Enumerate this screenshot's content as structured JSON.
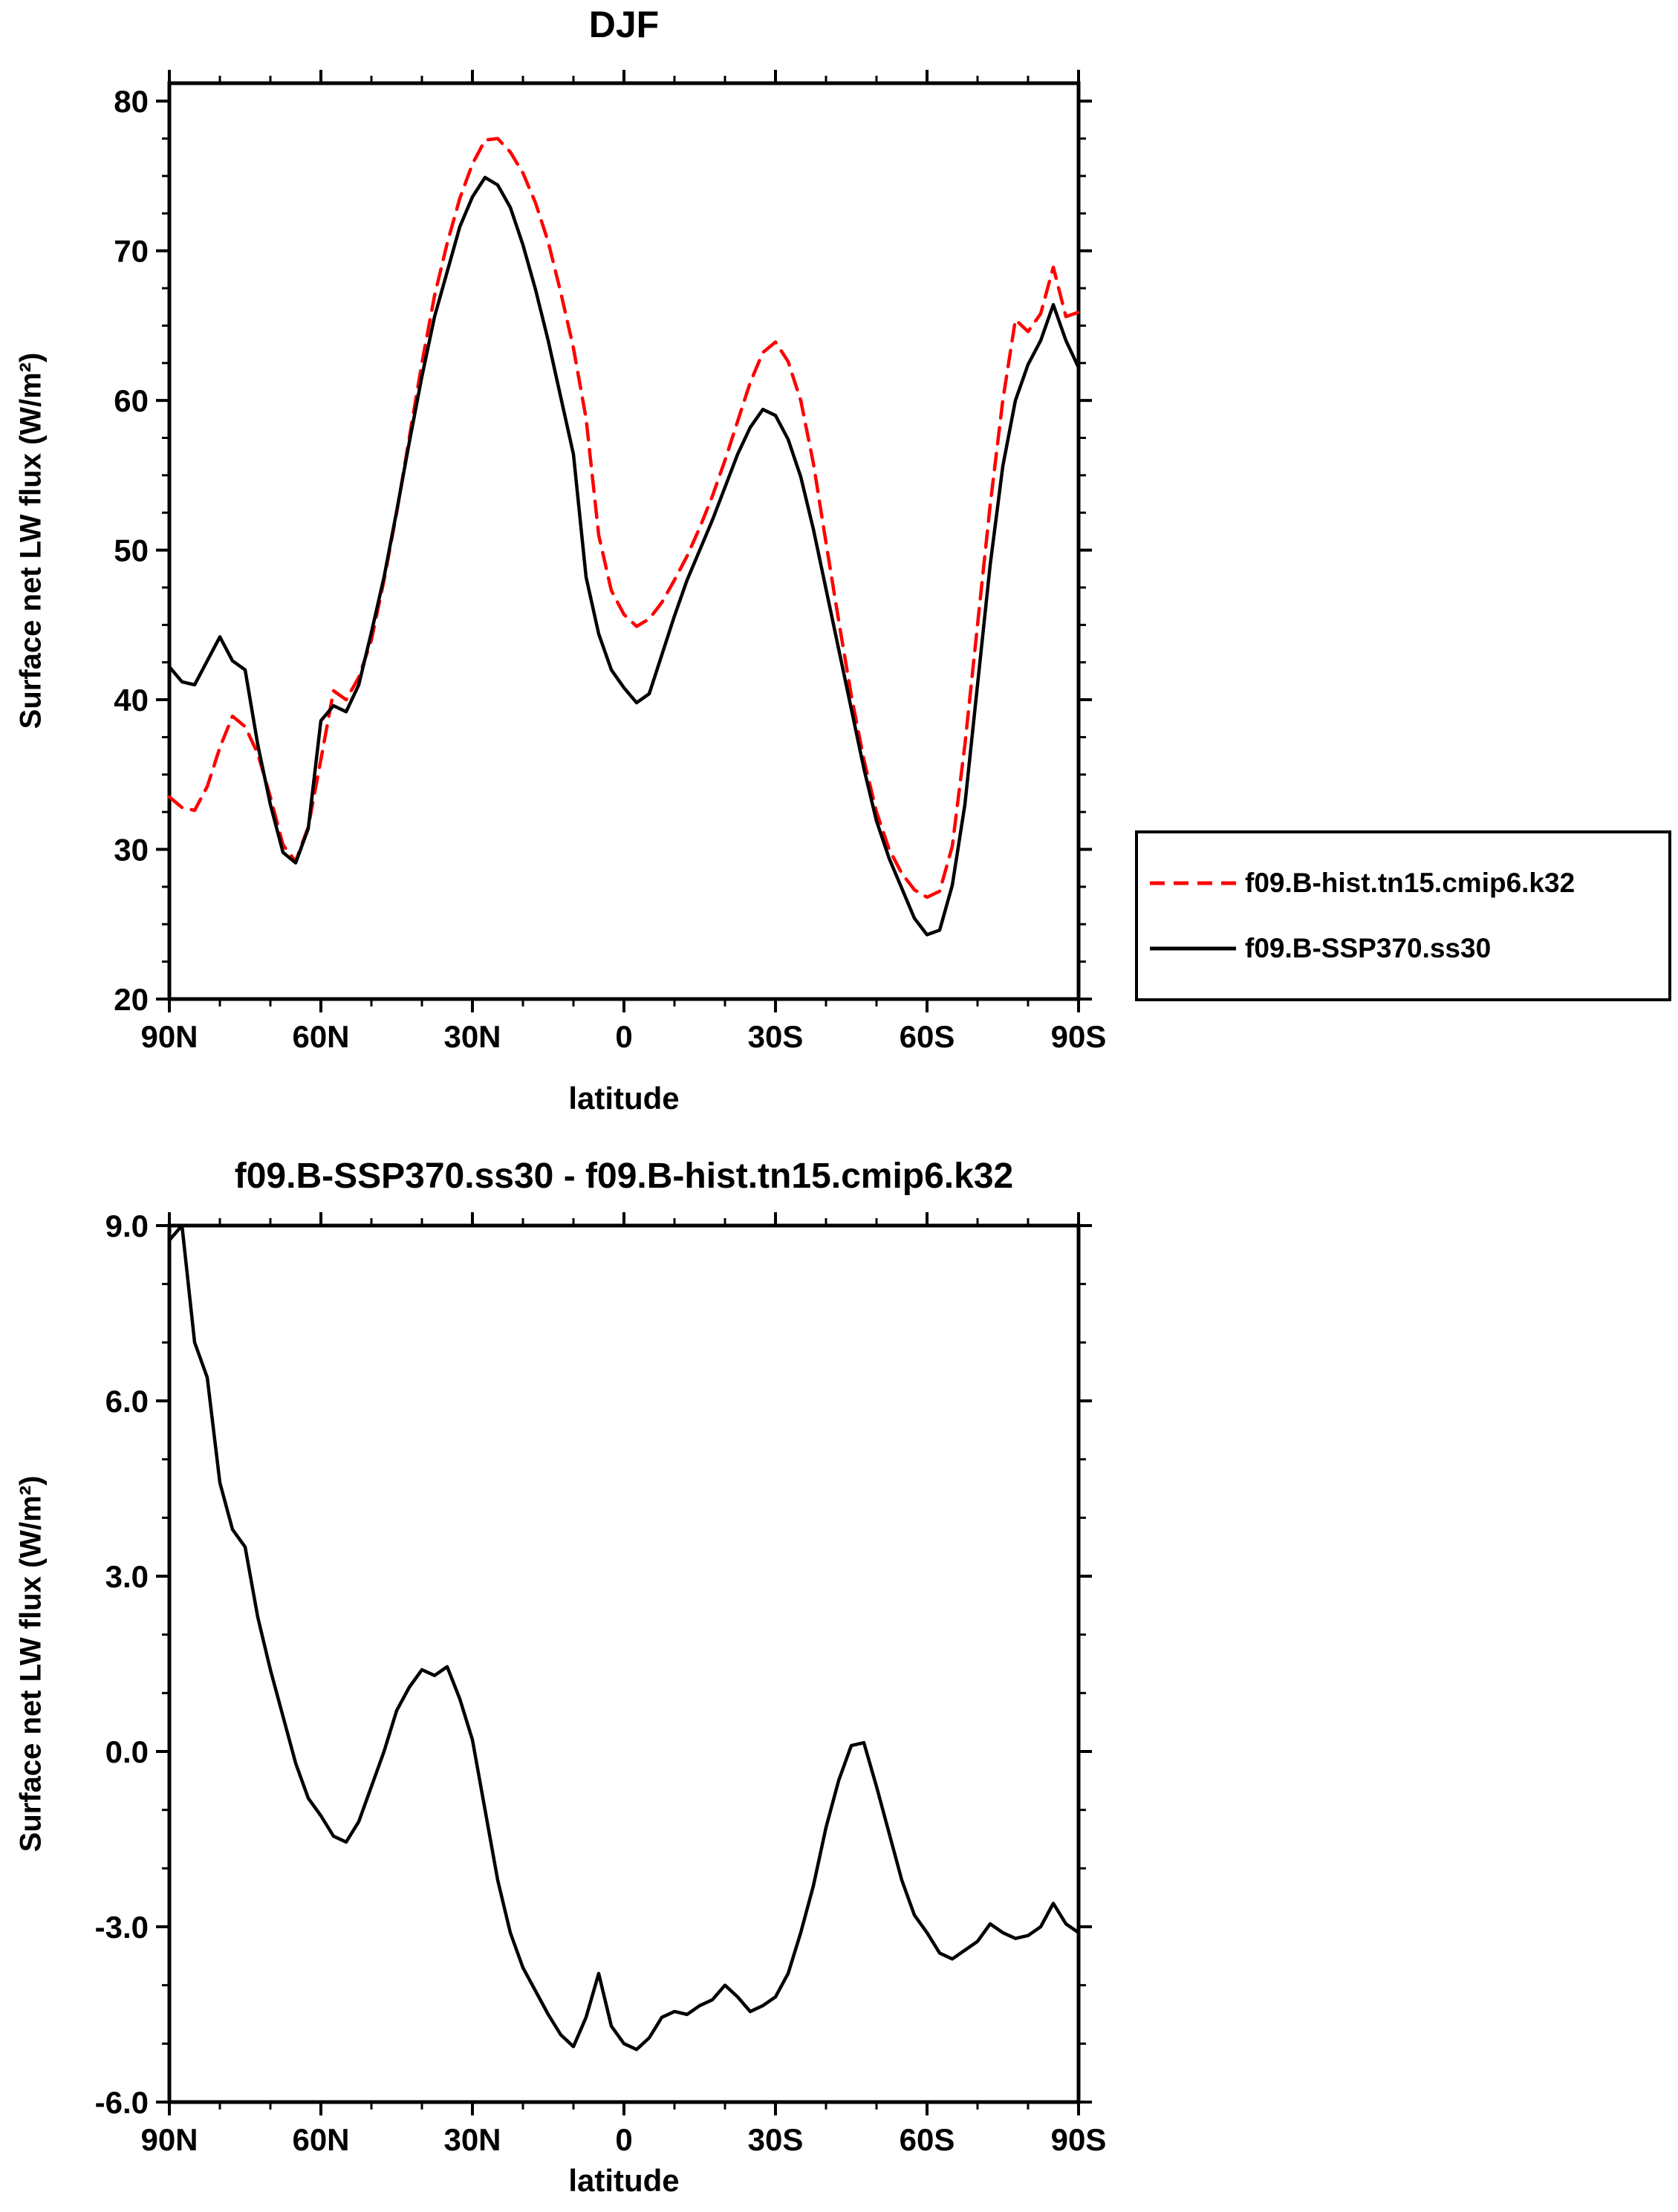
{
  "page": {
    "background": "#ffffff"
  },
  "chart_data": [
    {
      "type": "line",
      "title": "DJF",
      "xlabel": "latitude",
      "ylabel": "Surface net LW flux (W/m²)",
      "xlim": [
        90,
        -90
      ],
      "ylim": [
        20,
        80
      ],
      "grid": false,
      "legend_position": "outside-right-bottom",
      "xticks": {
        "values": [
          90,
          60,
          30,
          0,
          -30,
          -60,
          -90
        ],
        "labels": [
          "90N",
          "60N",
          "30N",
          "0",
          "30S",
          "60S",
          "90S"
        ]
      },
      "yticks": {
        "values": [
          20,
          30,
          40,
          50,
          60,
          70,
          80
        ],
        "labels": [
          "20",
          "30",
          "40",
          "50",
          "60",
          "70",
          "80"
        ]
      },
      "x": [
        90,
        87.5,
        85,
        82.5,
        80,
        77.5,
        75,
        72.5,
        70,
        67.5,
        65,
        62.5,
        60,
        57.5,
        55,
        52.5,
        50,
        47.5,
        45,
        42.5,
        40,
        37.5,
        35,
        32.5,
        30,
        27.5,
        25,
        22.5,
        20,
        17.5,
        15,
        12.5,
        10,
        7.5,
        5,
        2.5,
        0,
        -2.5,
        -5,
        -7.5,
        -10,
        -12.5,
        -15,
        -17.5,
        -20,
        -22.5,
        -25,
        -27.5,
        -30,
        -32.5,
        -35,
        -37.5,
        -40,
        -42.5,
        -45,
        -47.5,
        -50,
        -52.5,
        -55,
        -57.5,
        -60,
        -62.5,
        -65,
        -67.5,
        -70,
        -72.5,
        -75,
        -77.5,
        -80,
        -82.5,
        -85,
        -87.5,
        -90
      ],
      "series": [
        {
          "name": "f09.B-hist.tn15.cmip6.k32",
          "color": "#ff0000",
          "style": "dashed",
          "values": [
            33.5,
            32.8,
            32.6,
            34.2,
            36.8,
            38.9,
            38.2,
            36.4,
            33.5,
            30.3,
            29.2,
            31.5,
            36.0,
            40.6,
            40.0,
            41.5,
            44.0,
            48.0,
            52.5,
            57.5,
            62.5,
            67.0,
            70.5,
            73.5,
            75.8,
            77.4,
            77.5,
            76.6,
            75.2,
            73.2,
            70.6,
            67.2,
            63.5,
            58.8,
            51.0,
            47.3,
            45.7,
            44.9,
            45.4,
            46.5,
            48.0,
            49.6,
            51.5,
            53.6,
            56.0,
            58.6,
            61.2,
            63.2,
            63.9,
            62.6,
            60.0,
            55.8,
            50.5,
            45.3,
            40.3,
            36.0,
            32.5,
            30.0,
            28.4,
            27.3,
            26.8,
            27.2,
            30.2,
            37.0,
            45.0,
            53.0,
            60.0,
            65.4,
            64.6,
            65.8,
            68.9,
            65.6,
            65.9
          ]
        },
        {
          "name": "f09.B-SSP370.ss30",
          "color": "#000000",
          "style": "solid",
          "values": [
            42.2,
            41.2,
            41.0,
            42.6,
            44.2,
            42.6,
            42.0,
            37.0,
            33.0,
            29.8,
            29.1,
            31.4,
            38.6,
            39.6,
            39.2,
            41.0,
            44.5,
            48.2,
            52.6,
            57.2,
            61.6,
            65.6,
            68.6,
            71.6,
            73.6,
            74.9,
            74.4,
            72.9,
            70.4,
            67.4,
            64.0,
            60.2,
            56.4,
            48.2,
            44.4,
            42.0,
            40.8,
            39.8,
            40.4,
            43.0,
            45.6,
            48.0,
            50.0,
            52.0,
            54.2,
            56.4,
            58.2,
            59.4,
            59.0,
            57.4,
            54.9,
            51.4,
            47.4,
            43.4,
            39.4,
            35.4,
            31.9,
            29.4,
            27.4,
            25.4,
            24.3,
            24.6,
            27.6,
            33.0,
            41.0,
            49.0,
            55.6,
            60.0,
            62.4,
            64.0,
            66.4,
            64.0,
            62.2
          ]
        }
      ]
    },
    {
      "type": "line",
      "title": "f09.B-SSP370.ss30 - f09.B-hist.tn15.cmip6.k32",
      "xlabel": "latitude",
      "ylabel": "Surface net LW flux (W/m²)",
      "xlim": [
        90,
        -90
      ],
      "ylim": [
        -6,
        9
      ],
      "grid": false,
      "xticks": {
        "values": [
          90,
          60,
          30,
          0,
          -30,
          -60,
          -90
        ],
        "labels": [
          "90N",
          "60N",
          "30N",
          "0",
          "30S",
          "60S",
          "90S"
        ]
      },
      "yticks": {
        "values": [
          -6,
          -3,
          0,
          3,
          6,
          9
        ],
        "labels": [
          "-6.0",
          "-3.0",
          "0.0",
          "3.0",
          "6.0",
          "9.0"
        ]
      },
      "x": [
        90,
        87.5,
        85,
        82.5,
        80,
        77.5,
        75,
        72.5,
        70,
        67.5,
        65,
        62.5,
        60,
        57.5,
        55,
        52.5,
        50,
        47.5,
        45,
        42.5,
        40,
        37.5,
        35,
        32.5,
        30,
        27.5,
        25,
        22.5,
        20,
        17.5,
        15,
        12.5,
        10,
        7.5,
        5,
        2.5,
        0,
        -2.5,
        -5,
        -7.5,
        -10,
        -12.5,
        -15,
        -17.5,
        -20,
        -22.5,
        -25,
        -27.5,
        -30,
        -32.5,
        -35,
        -37.5,
        -40,
        -42.5,
        -45,
        -47.5,
        -50,
        -52.5,
        -55,
        -57.5,
        -60,
        -62.5,
        -65,
        -67.5,
        -70,
        -72.5,
        -75,
        -77.5,
        -80,
        -82.5,
        -85,
        -87.5,
        -90
      ],
      "series": [
        {
          "name": "f09.B-SSP370.ss30 - f09.B-hist.tn15.cmip6.k32",
          "color": "#000000",
          "style": "solid",
          "values": [
            8.75,
            9.0,
            7.0,
            6.4,
            4.6,
            3.8,
            3.5,
            2.3,
            1.4,
            0.6,
            -0.2,
            -0.8,
            -1.1,
            -1.45,
            -1.55,
            -1.2,
            -0.6,
            0.0,
            0.7,
            1.1,
            1.4,
            1.3,
            1.45,
            0.9,
            0.2,
            -1.0,
            -2.2,
            -3.1,
            -3.7,
            -4.1,
            -4.5,
            -4.85,
            -5.05,
            -4.55,
            -3.8,
            -4.7,
            -5.0,
            -5.1,
            -4.9,
            -4.55,
            -4.45,
            -4.5,
            -4.35,
            -4.25,
            -4.0,
            -4.2,
            -4.45,
            -4.35,
            -4.2,
            -3.8,
            -3.1,
            -2.3,
            -1.3,
            -0.5,
            0.1,
            0.15,
            -0.6,
            -1.4,
            -2.2,
            -2.8,
            -3.1,
            -3.45,
            -3.55,
            -3.4,
            -3.25,
            -2.95,
            -3.1,
            -3.2,
            -3.15,
            -3.0,
            -2.6,
            -2.95,
            -3.1
          ]
        }
      ]
    }
  ]
}
